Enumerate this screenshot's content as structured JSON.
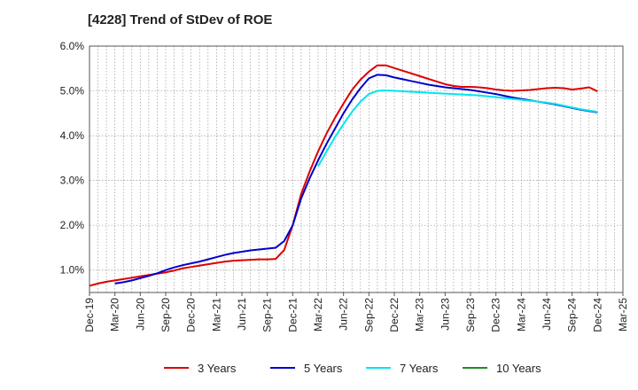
{
  "chart_data": {
    "type": "line",
    "title": "[4228]  Trend of StDev of ROE",
    "y_unit": "%",
    "ylim": [
      0.5,
      6.0
    ],
    "yticks": [
      1.0,
      2.0,
      3.0,
      4.0,
      5.0,
      6.0
    ],
    "ytick_labels": [
      "1.0%",
      "2.0%",
      "3.0%",
      "4.0%",
      "5.0%",
      "6.0%"
    ],
    "x_tick_labels": [
      "Dec-19",
      "Mar-20",
      "Jun-20",
      "Sep-20",
      "Dec-20",
      "Mar-21",
      "Jun-21",
      "Sep-21",
      "Dec-21",
      "Mar-22",
      "Jun-22",
      "Sep-22",
      "Dec-22",
      "Mar-23",
      "Jun-23",
      "Sep-23",
      "Dec-23",
      "Mar-24",
      "Jun-24",
      "Sep-24",
      "Dec-24",
      "Mar-25"
    ],
    "x_months": [
      "2019-12",
      "2020-01",
      "2020-02",
      "2020-03",
      "2020-04",
      "2020-05",
      "2020-06",
      "2020-07",
      "2020-08",
      "2020-09",
      "2020-10",
      "2020-11",
      "2020-12",
      "2021-01",
      "2021-02",
      "2021-03",
      "2021-04",
      "2021-05",
      "2021-06",
      "2021-07",
      "2021-08",
      "2021-09",
      "2021-10",
      "2021-11",
      "2021-12",
      "2022-01",
      "2022-02",
      "2022-03",
      "2022-04",
      "2022-05",
      "2022-06",
      "2022-07",
      "2022-08",
      "2022-09",
      "2022-10",
      "2022-11",
      "2022-12",
      "2023-01",
      "2023-02",
      "2023-03",
      "2023-04",
      "2023-05",
      "2023-06",
      "2023-07",
      "2023-08",
      "2023-09",
      "2023-10",
      "2023-11",
      "2023-12",
      "2024-01",
      "2024-02",
      "2024-03",
      "2024-04",
      "2024-05",
      "2024-06",
      "2024-07",
      "2024-08",
      "2024-09",
      "2024-10",
      "2024-11",
      "2024-12",
      "2025-01",
      "2025-02",
      "2025-03"
    ],
    "grid": true,
    "legend_position": "bottom",
    "series": [
      {
        "name": "3 Years",
        "color": "#dd0000",
        "values": [
          0.65,
          0.7,
          0.74,
          0.77,
          0.8,
          0.83,
          0.86,
          0.89,
          0.92,
          0.95,
          0.99,
          1.04,
          1.07,
          1.1,
          1.13,
          1.16,
          1.19,
          1.21,
          1.22,
          1.23,
          1.24,
          1.24,
          1.25,
          1.45,
          2.0,
          2.7,
          3.2,
          3.65,
          4.05,
          4.4,
          4.72,
          5.02,
          5.25,
          5.43,
          5.57,
          5.57,
          5.51,
          5.45,
          5.39,
          5.33,
          5.27,
          5.21,
          5.15,
          5.11,
          5.09,
          5.09,
          5.08,
          5.06,
          5.03,
          5.01,
          5.0,
          5.01,
          5.02,
          5.04,
          5.06,
          5.07,
          5.06,
          5.03,
          5.05,
          5.08,
          4.99,
          null,
          null,
          null
        ]
      },
      {
        "name": "5 Years",
        "color": "#0000cc",
        "values": [
          null,
          null,
          null,
          0.7,
          0.73,
          0.77,
          0.82,
          0.87,
          0.93,
          1.0,
          1.06,
          1.11,
          1.15,
          1.19,
          1.24,
          1.29,
          1.34,
          1.38,
          1.41,
          1.44,
          1.46,
          1.48,
          1.5,
          1.65,
          2.0,
          2.6,
          3.05,
          3.45,
          3.82,
          4.16,
          4.5,
          4.8,
          5.06,
          5.28,
          5.36,
          5.35,
          5.3,
          5.26,
          5.22,
          5.18,
          5.14,
          5.11,
          5.08,
          5.06,
          5.04,
          5.02,
          4.99,
          4.96,
          4.93,
          4.89,
          4.85,
          4.82,
          4.79,
          4.76,
          4.73,
          4.7,
          4.66,
          4.62,
          4.58,
          4.55,
          4.52,
          null,
          null,
          null
        ]
      },
      {
        "name": "7 Years",
        "color": "#00e5ee",
        "values": [
          null,
          null,
          null,
          null,
          null,
          null,
          null,
          null,
          null,
          null,
          null,
          null,
          null,
          null,
          null,
          null,
          null,
          null,
          null,
          null,
          null,
          null,
          null,
          null,
          null,
          null,
          null,
          3.32,
          3.65,
          3.97,
          4.26,
          4.53,
          4.76,
          4.93,
          5.0,
          5.01,
          5.0,
          4.99,
          4.98,
          4.97,
          4.96,
          4.95,
          4.94,
          4.93,
          4.92,
          4.91,
          4.9,
          4.88,
          4.86,
          4.84,
          4.82,
          4.8,
          4.78,
          4.76,
          4.74,
          4.71,
          4.67,
          4.63,
          4.59,
          4.56,
          4.53,
          null,
          null,
          null
        ]
      },
      {
        "name": "10 Years",
        "color": "#228b22",
        "values": []
      }
    ]
  }
}
